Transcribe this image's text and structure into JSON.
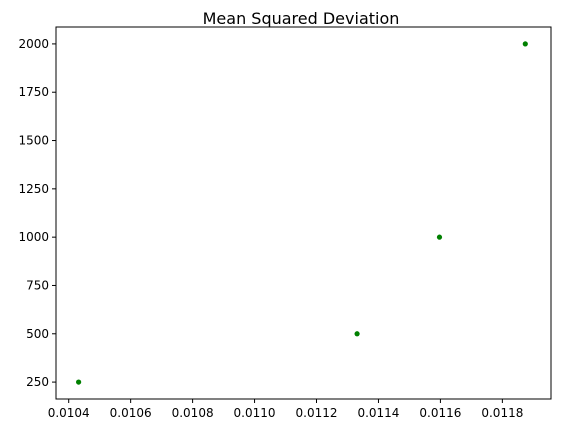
{
  "chart_data": {
    "type": "scatter",
    "title": "Mean Squared Deviation",
    "xlabel": "",
    "ylabel": "",
    "xlim": [
      0.010359,
      0.011957
    ],
    "ylim": [
      162.5,
      2087.5
    ],
    "x_ticks": [
      0.0104,
      0.0106,
      0.0108,
      0.011,
      0.0112,
      0.0114,
      0.0116,
      0.0118
    ],
    "x_tick_labels": [
      "0.0104",
      "0.0106",
      "0.0108",
      "0.0110",
      "0.0112",
      "0.0114",
      "0.0116",
      "0.0118"
    ],
    "y_ticks": [
      250,
      500,
      750,
      1000,
      1250,
      1500,
      1750,
      2000
    ],
    "y_tick_labels": [
      "250",
      "500",
      "750",
      "1000",
      "1250",
      "1500",
      "1750",
      "2000"
    ],
    "grid": false,
    "legend": "none",
    "series": [
      {
        "color": "#008000",
        "points": [
          {
            "x": 0.010432,
            "y": 250
          },
          {
            "x": 0.011331,
            "y": 500
          },
          {
            "x": 0.011597,
            "y": 1000
          },
          {
            "x": 0.011874,
            "y": 2000
          }
        ]
      }
    ]
  }
}
